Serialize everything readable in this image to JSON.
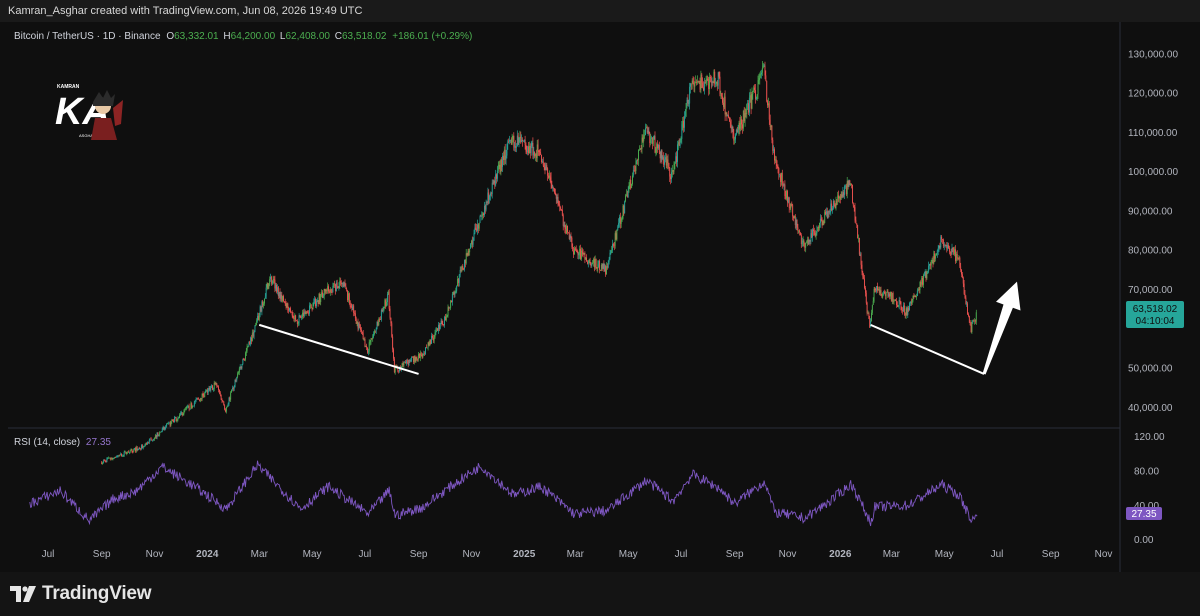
{
  "header": {
    "attribution": "Kamran_Asghar created with TradingView.com, Jun 08, 2026 19:49 UTC"
  },
  "footer": {
    "brand": "TradingView"
  },
  "logo": {
    "text_main": "KA",
    "text_top": "KAMRAN",
    "text_bottom": "ASGHAR"
  },
  "colors": {
    "background": "#0f0f0f",
    "up": "#26a69a",
    "up_bright": "#4caf50",
    "down": "#ef5350",
    "rsi": "#7e57c2",
    "last_price_bg": "#26a69a",
    "annotation": "#ffffff",
    "axis_text": "#b2b5be"
  },
  "chart_data": {
    "type": "candlestick",
    "title": "Bitcoin / TetherUS · 1D · Binance",
    "ohlc": {
      "open_label": "O",
      "open": "63,332.01",
      "high_label": "H",
      "high": "64,200.00",
      "low_label": "L",
      "low": "62,408.00",
      "close_label": "C",
      "close": "63,518.02",
      "change": "+186.01 (+0.29%)"
    },
    "last_price": "63,518.02",
    "countdown": "04:10:04",
    "price_ticks": [
      "130,000.00",
      "120,000.00",
      "110,000.00",
      "100,000.00",
      "90,000.00",
      "80,000.00",
      "70,000.00",
      "50,000.00",
      "40,000.00"
    ],
    "price_tick_values": [
      130000,
      120000,
      110000,
      100000,
      90000,
      80000,
      70000,
      50000,
      40000
    ],
    "price_range": [
      35000,
      133000
    ],
    "time_ticks": [
      "Jul",
      "Sep",
      "Nov",
      "2024",
      "Mar",
      "May",
      "Jul",
      "Sep",
      "Nov",
      "2025",
      "Mar",
      "May",
      "Jul",
      "Sep",
      "Nov",
      "2026",
      "Mar",
      "May",
      "Jul",
      "Sep",
      "Nov"
    ],
    "price_path": [
      {
        "date": "2023-09-01",
        "price": 26000
      },
      {
        "date": "2023-10-20",
        "price": 30000
      },
      {
        "date": "2023-12-01",
        "price": 38000
      },
      {
        "date": "2024-01-12",
        "price": 46000
      },
      {
        "date": "2024-01-23",
        "price": 39500
      },
      {
        "date": "2024-02-28",
        "price": 61500
      },
      {
        "date": "2024-03-14",
        "price": 73000
      },
      {
        "date": "2024-04-15",
        "price": 62000
      },
      {
        "date": "2024-05-20",
        "price": 70000
      },
      {
        "date": "2024-06-07",
        "price": 71500
      },
      {
        "date": "2024-07-05",
        "price": 54500
      },
      {
        "date": "2024-07-29",
        "price": 68500
      },
      {
        "date": "2024-08-05",
        "price": 49500
      },
      {
        "date": "2024-09-06",
        "price": 53500
      },
      {
        "date": "2024-10-01",
        "price": 62000
      },
      {
        "date": "2024-11-12",
        "price": 88000
      },
      {
        "date": "2024-12-17",
        "price": 108000
      },
      {
        "date": "2025-01-20",
        "price": 105000
      },
      {
        "date": "2025-02-28",
        "price": 80000
      },
      {
        "date": "2025-04-07",
        "price": 75000
      },
      {
        "date": "2025-05-22",
        "price": 111000
      },
      {
        "date": "2025-06-22",
        "price": 99000
      },
      {
        "date": "2025-07-14",
        "price": 122000
      },
      {
        "date": "2025-08-14",
        "price": 123500
      },
      {
        "date": "2025-09-01",
        "price": 108000
      },
      {
        "date": "2025-10-06",
        "price": 125500
      },
      {
        "date": "2025-10-17",
        "price": 104000
      },
      {
        "date": "2025-11-21",
        "price": 81000
      },
      {
        "date": "2025-12-20",
        "price": 90000
      },
      {
        "date": "2026-01-14",
        "price": 97000
      },
      {
        "date": "2026-02-05",
        "price": 60000
      },
      {
        "date": "2026-02-10",
        "price": 70000
      },
      {
        "date": "2026-03-04",
        "price": 68000
      },
      {
        "date": "2026-03-20",
        "price": 64000
      },
      {
        "date": "2026-04-28",
        "price": 82000
      },
      {
        "date": "2026-05-18",
        "price": 78000
      },
      {
        "date": "2026-06-02",
        "price": 60000
      },
      {
        "date": "2026-06-08",
        "price": 63518
      }
    ],
    "rsi": {
      "label": "RSI (14, close)",
      "value": "27.35",
      "ticks": [
        "120.00",
        "80.00",
        "40.00",
        "0.00"
      ],
      "tick_values": [
        120,
        80,
        40,
        0
      ],
      "range": [
        -5,
        130
      ],
      "series": [
        {
          "date": "2023-06-10",
          "v": 42
        },
        {
          "date": "2023-07-15",
          "v": 57
        },
        {
          "date": "2023-08-18",
          "v": 22
        },
        {
          "date": "2023-09-15",
          "v": 48
        },
        {
          "date": "2023-10-10",
          "v": 56
        },
        {
          "date": "2023-11-10",
          "v": 85
        },
        {
          "date": "2023-12-20",
          "v": 60
        },
        {
          "date": "2024-01-23",
          "v": 36
        },
        {
          "date": "2024-02-28",
          "v": 87
        },
        {
          "date": "2024-04-18",
          "v": 36
        },
        {
          "date": "2024-05-20",
          "v": 62
        },
        {
          "date": "2024-07-05",
          "v": 30
        },
        {
          "date": "2024-07-29",
          "v": 57
        },
        {
          "date": "2024-08-05",
          "v": 28
        },
        {
          "date": "2024-09-06",
          "v": 38
        },
        {
          "date": "2024-10-01",
          "v": 57
        },
        {
          "date": "2024-11-12",
          "v": 86
        },
        {
          "date": "2024-12-20",
          "v": 52
        },
        {
          "date": "2025-01-20",
          "v": 62
        },
        {
          "date": "2025-02-28",
          "v": 30
        },
        {
          "date": "2025-04-07",
          "v": 34
        },
        {
          "date": "2025-05-22",
          "v": 69
        },
        {
          "date": "2025-06-22",
          "v": 45
        },
        {
          "date": "2025-07-14",
          "v": 76
        },
        {
          "date": "2025-08-14",
          "v": 60
        },
        {
          "date": "2025-09-01",
          "v": 42
        },
        {
          "date": "2025-10-06",
          "v": 68
        },
        {
          "date": "2025-10-17",
          "v": 32
        },
        {
          "date": "2025-11-21",
          "v": 25
        },
        {
          "date": "2025-12-20",
          "v": 45
        },
        {
          "date": "2026-01-14",
          "v": 65
        },
        {
          "date": "2026-02-05",
          "v": 20
        },
        {
          "date": "2026-02-10",
          "v": 38
        },
        {
          "date": "2026-03-20",
          "v": 40
        },
        {
          "date": "2026-04-28",
          "v": 64
        },
        {
          "date": "2026-05-18",
          "v": 52
        },
        {
          "date": "2026-06-02",
          "v": 22
        },
        {
          "date": "2026-06-08",
          "v": 27.35
        }
      ]
    },
    "annotations": [
      {
        "type": "trendline",
        "from": {
          "date": "2024-03-01",
          "price": 61000
        },
        "to": {
          "date": "2024-09-01",
          "price": 48500
        }
      },
      {
        "type": "trendline",
        "from": {
          "date": "2026-02-05",
          "price": 61000
        },
        "to": {
          "date": "2026-06-16",
          "price": 48500
        }
      },
      {
        "type": "arrow",
        "from": {
          "date": "2026-06-16",
          "price": 48500
        },
        "to": {
          "date": "2026-07-24",
          "price": 72000
        }
      }
    ]
  }
}
